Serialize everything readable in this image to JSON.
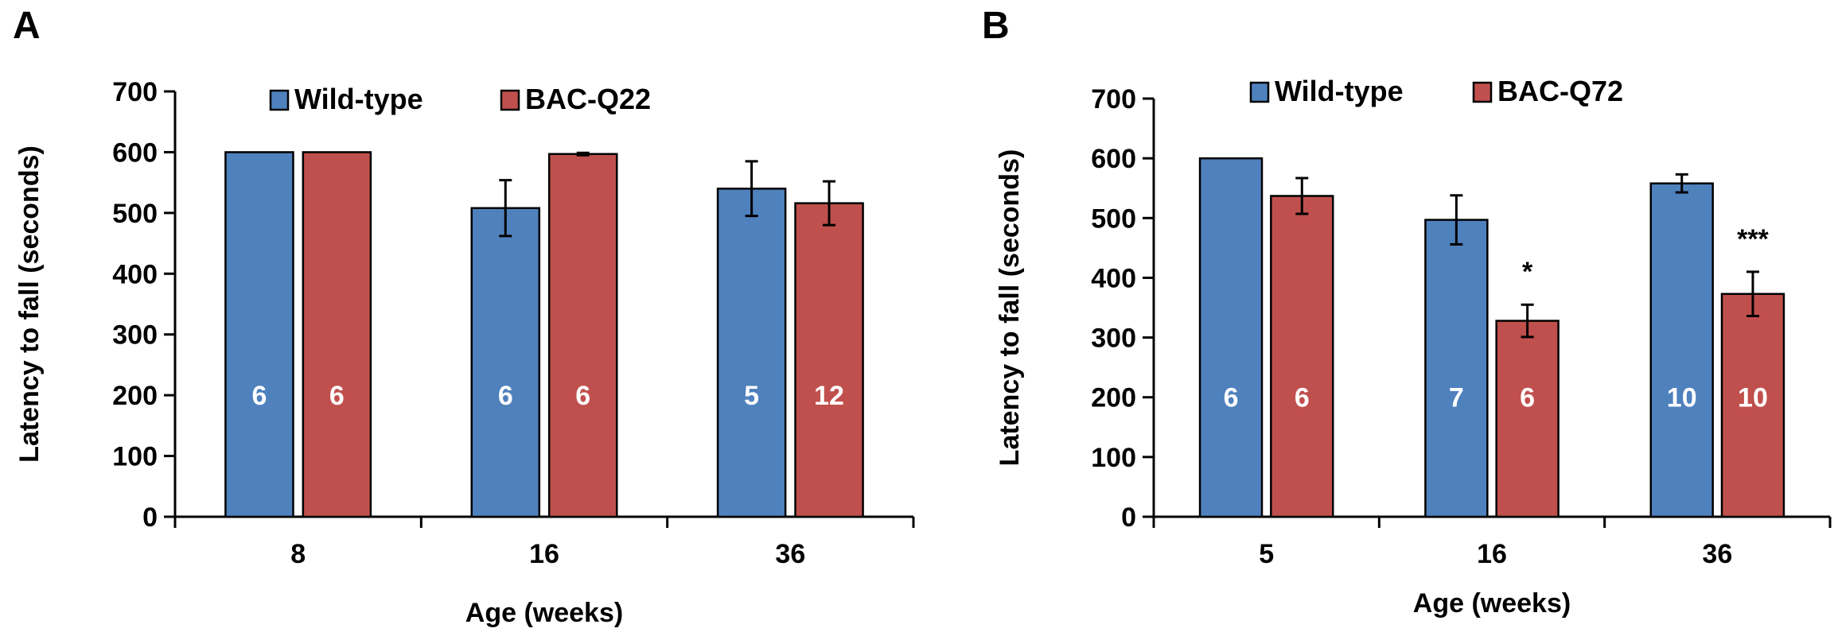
{
  "colors": {
    "wild_type": "#4f81bd",
    "bac": "#c0504d"
  },
  "chart_data": [
    {
      "type": "bar",
      "panel": "A",
      "xlabel": "Age (weeks)",
      "ylabel": "Latency to fall (seconds)",
      "ylim": [
        0,
        700
      ],
      "yticks": [
        0,
        100,
        200,
        300,
        400,
        500,
        600,
        700
      ],
      "categories": [
        "8",
        "16",
        "36"
      ],
      "legend_position": "top",
      "grid": false,
      "series": [
        {
          "name": "Wild-type",
          "values": [
            600,
            508,
            540
          ],
          "errors": [
            0,
            46,
            45
          ],
          "n": [
            "6",
            "6",
            "5"
          ],
          "sig": [
            "",
            "",
            ""
          ]
        },
        {
          "name": "BAC-Q22",
          "values": [
            600,
            597,
            516
          ],
          "errors": [
            0,
            2,
            36
          ],
          "n": [
            "6",
            "6",
            "12"
          ],
          "sig": [
            "",
            "",
            ""
          ]
        }
      ]
    },
    {
      "type": "bar",
      "panel": "B",
      "xlabel": "Age (weeks)",
      "ylabel": "Latency to fall (seconds)",
      "ylim": [
        0,
        700
      ],
      "yticks": [
        0,
        100,
        200,
        300,
        400,
        500,
        600,
        700
      ],
      "categories": [
        "5",
        "16",
        "36"
      ],
      "legend_position": "top",
      "grid": false,
      "series": [
        {
          "name": "Wild-type",
          "values": [
            600,
            497,
            558
          ],
          "errors": [
            0,
            41,
            15
          ],
          "n": [
            "6",
            "7",
            "10"
          ],
          "sig": [
            "",
            "",
            ""
          ]
        },
        {
          "name": "BAC-Q72",
          "values": [
            537,
            328,
            373
          ],
          "errors": [
            30,
            27,
            37
          ],
          "n": [
            "6",
            "6",
            "10"
          ],
          "sig": [
            "",
            "*",
            "***"
          ]
        }
      ]
    }
  ]
}
